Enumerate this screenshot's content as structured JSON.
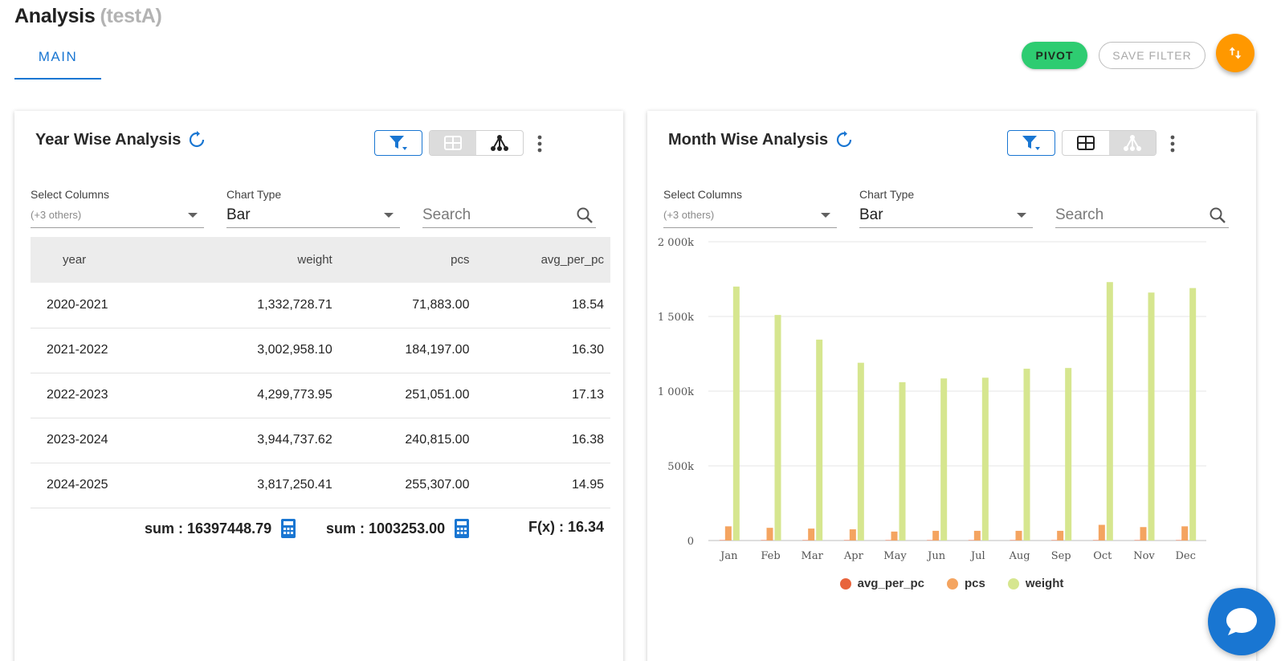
{
  "header": {
    "title": "Analysis",
    "subtitle": "(testA)",
    "tab_main": "MAIN",
    "pivot_label": "PIVOT",
    "save_filter_label": "SAVE FILTER"
  },
  "year_card": {
    "title": "Year Wise Analysis",
    "select_columns_label": "Select Columns",
    "select_columns_value": "(+3 others)",
    "chart_type_label": "Chart Type",
    "chart_type_value": "Bar",
    "search_placeholder": "Search",
    "columns": [
      "year",
      "weight",
      "pcs",
      "avg_per_pc"
    ],
    "rows": [
      [
        "2020-2021",
        "1,332,728.71",
        "71,883.00",
        "18.54"
      ],
      [
        "2021-2022",
        "3,002,958.10",
        "184,197.00",
        "16.30"
      ],
      [
        "2022-2023",
        "4,299,773.95",
        "251,051.00",
        "17.13"
      ],
      [
        "2023-2024",
        "3,944,737.62",
        "240,815.00",
        "16.38"
      ],
      [
        "2024-2025",
        "3,817,250.41",
        "255,307.00",
        "14.95"
      ]
    ],
    "totals": {
      "weight": "sum : 16397448.79",
      "pcs": "sum : 1003253.00",
      "avg": "F(x) : 16.34"
    }
  },
  "month_card": {
    "title": "Month Wise Analysis",
    "select_columns_label": "Select Columns",
    "select_columns_value": "(+3 others)",
    "chart_type_label": "Chart Type",
    "chart_type_value": "Bar",
    "search_placeholder": "Search"
  },
  "colors": {
    "primary": "#1976d2",
    "pivot": "#2ecc71",
    "sort_fab": "#ff9800",
    "avg_per_pc": "#e8643c",
    "pcs": "#f4a460",
    "weight": "#d6e68f"
  },
  "chart_data": {
    "type": "bar",
    "categories": [
      "Jan",
      "Feb",
      "Mar",
      "Apr",
      "May",
      "Jun",
      "Jul",
      "Aug",
      "Sep",
      "Oct",
      "Nov",
      "Dec"
    ],
    "series": [
      {
        "name": "avg_per_pc",
        "values": [
          17,
          17,
          17,
          17,
          17,
          17,
          17,
          17,
          17,
          17,
          17,
          17
        ]
      },
      {
        "name": "pcs",
        "values": [
          95000,
          85000,
          80000,
          75000,
          60000,
          65000,
          65000,
          65000,
          65000,
          105000,
          90000,
          95000
        ]
      },
      {
        "name": "weight",
        "values": [
          1700000,
          1510000,
          1345000,
          1190000,
          1060000,
          1085000,
          1090000,
          1150000,
          1155000,
          1730000,
          1660000,
          1690000
        ]
      }
    ],
    "y_tick_labels": [
      "0",
      "500k",
      "1 000k",
      "1 500k",
      "2 000k"
    ],
    "ylim": [
      0,
      2000000
    ],
    "grid": true,
    "legend_position": "bottom"
  }
}
